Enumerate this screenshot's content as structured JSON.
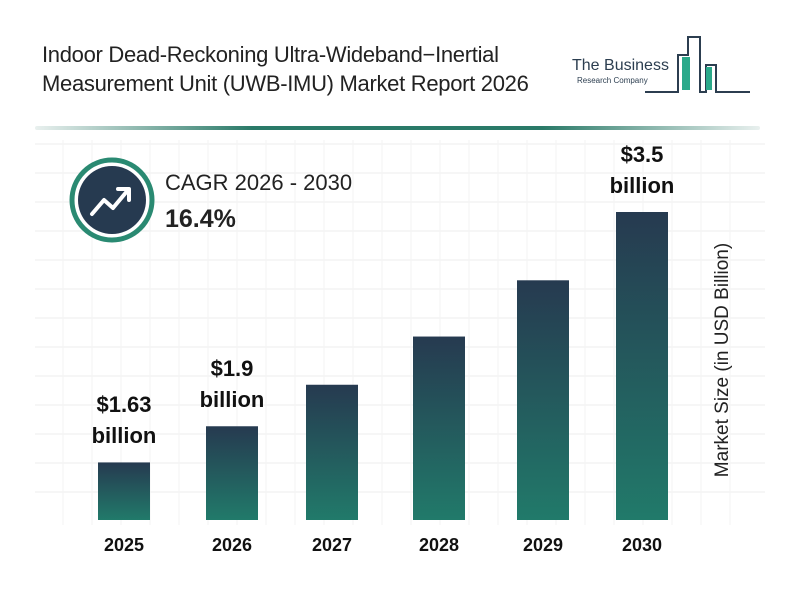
{
  "header": {
    "title": "Indoor Dead-Reckoning Ultra-Wideband−Inertial Measurement Unit (UWB-IMU) Market Report 2026",
    "logo_line1": "The Business",
    "logo_line2": "Research Company"
  },
  "cagr": {
    "icon": "trending-up-icon",
    "label": "CAGR 2026 - 2030",
    "value": "16.4%"
  },
  "colors": {
    "bar_top": "#263a50",
    "bar_bottom": "#217a6a",
    "accent": "#2a7a68"
  },
  "chart_data": {
    "type": "bar",
    "categories": [
      "2025",
      "2026",
      "2027",
      "2028",
      "2029",
      "2030"
    ],
    "values": [
      1.63,
      1.9,
      2.21,
      2.57,
      2.99,
      3.5
    ],
    "data_labels": [
      {
        "index": 0,
        "amount": "$1.63",
        "unit": "billion"
      },
      {
        "index": 1,
        "amount": "$1.9",
        "unit": "billion"
      },
      {
        "index": 5,
        "amount": "$3.5",
        "unit": "billion"
      }
    ],
    "xlabel": "",
    "ylabel": "Market Size (in USD Billion)",
    "grid": true
  }
}
